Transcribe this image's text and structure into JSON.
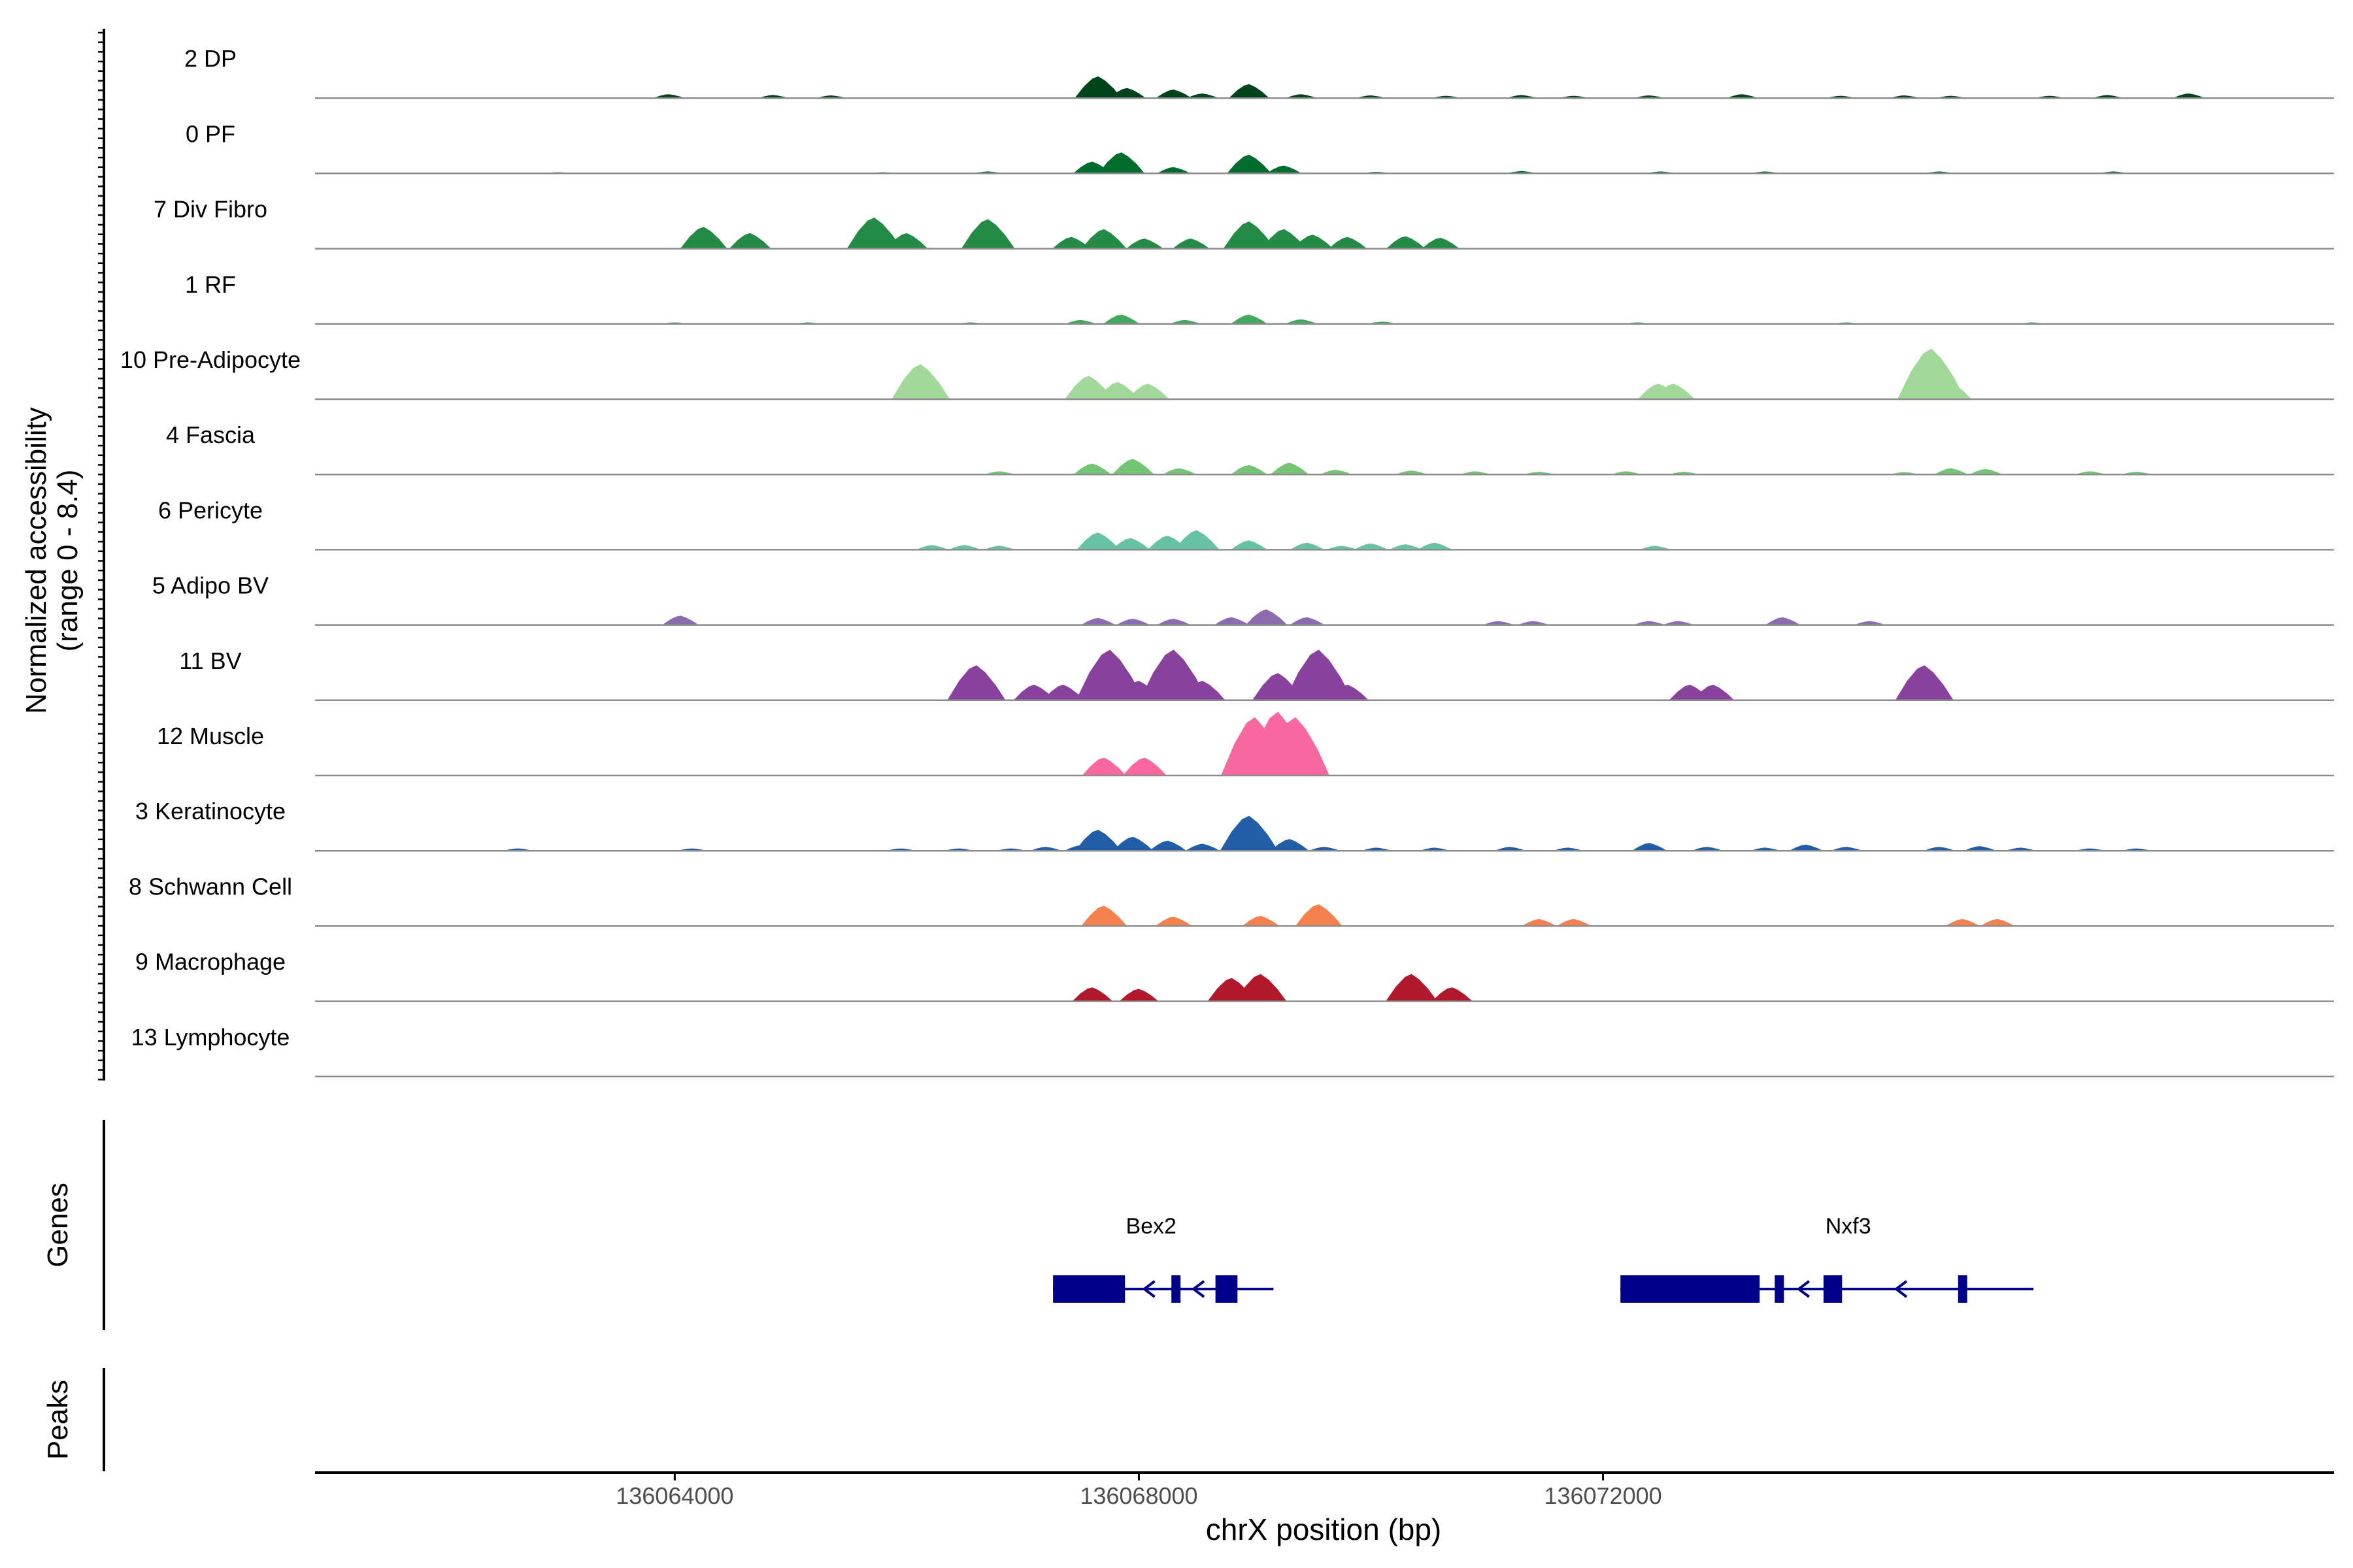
{
  "chart_data": {
    "type": "area",
    "title": "",
    "xlabel": "chrX position (bp)",
    "ylabel_line1": "Normalized accessibility",
    "ylabel_line2": "(range 0 - 8.4)",
    "y_range": [
      0,
      8.4
    ],
    "xlim": [
      136060900,
      136078300
    ],
    "x_ticks": [
      136064000,
      136068000,
      136072000
    ],
    "x_tick_labels": [
      "136064000",
      "136068000",
      "136072000"
    ],
    "panel_labels": {
      "genes": "Genes",
      "peaks": "Peaks"
    },
    "series": [
      {
        "name": "2 DP",
        "color": "#00441B",
        "peaks": [
          [
            136063950,
            0.5
          ],
          [
            136064850,
            0.4
          ],
          [
            136065350,
            0.35
          ],
          [
            136067650,
            2.8
          ],
          [
            136067900,
            1.3
          ],
          [
            136068300,
            1.1
          ],
          [
            136068550,
            0.6
          ],
          [
            136068950,
            1.8
          ],
          [
            136069400,
            0.5
          ],
          [
            136070000,
            0.35
          ],
          [
            136070650,
            0.3
          ],
          [
            136071300,
            0.4
          ],
          [
            136071750,
            0.3
          ],
          [
            136072400,
            0.35
          ],
          [
            136073200,
            0.5
          ],
          [
            136074050,
            0.3
          ],
          [
            136074600,
            0.35
          ],
          [
            136075000,
            0.3
          ],
          [
            136075850,
            0.3
          ],
          [
            136076350,
            0.4
          ],
          [
            136077050,
            0.6
          ]
        ]
      },
      {
        "name": "0 PF",
        "color": "#006D2C",
        "peaks": [
          [
            136063000,
            0.15
          ],
          [
            136065800,
            0.15
          ],
          [
            136066700,
            0.25
          ],
          [
            136067600,
            1.5
          ],
          [
            136067850,
            2.7
          ],
          [
            136068300,
            0.8
          ],
          [
            136068950,
            2.4
          ],
          [
            136069250,
            1.0
          ],
          [
            136070050,
            0.2
          ],
          [
            136071300,
            0.3
          ],
          [
            136072500,
            0.25
          ],
          [
            136073400,
            0.25
          ],
          [
            136074900,
            0.25
          ],
          [
            136076400,
            0.25
          ]
        ]
      },
      {
        "name": "7 Div Fibro",
        "color": "#238B45",
        "peaks": [
          [
            136064250,
            2.8
          ],
          [
            136064650,
            2.0
          ],
          [
            136065720,
            4.0
          ],
          [
            136066000,
            2.0
          ],
          [
            136066700,
            3.8
          ],
          [
            136067420,
            1.5
          ],
          [
            136067700,
            2.5
          ],
          [
            136068050,
            1.3
          ],
          [
            136068450,
            1.3
          ],
          [
            136068950,
            3.5
          ],
          [
            136069250,
            2.5
          ],
          [
            136069500,
            1.8
          ],
          [
            136069800,
            1.5
          ],
          [
            136070300,
            1.6
          ],
          [
            136070600,
            1.4
          ]
        ]
      },
      {
        "name": "1 RF",
        "color": "#41AB5D",
        "peaks": [
          [
            136064000,
            0.2
          ],
          [
            136065150,
            0.2
          ],
          [
            136066550,
            0.2
          ],
          [
            136067500,
            0.5
          ],
          [
            136067850,
            1.2
          ],
          [
            136068400,
            0.5
          ],
          [
            136068950,
            1.2
          ],
          [
            136069400,
            0.6
          ],
          [
            136070100,
            0.3
          ],
          [
            136072300,
            0.2
          ],
          [
            136074100,
            0.2
          ],
          [
            136075700,
            0.2
          ]
        ]
      },
      {
        "name": "10 Pre-Adipocyte",
        "color": "#A1D99B",
        "peaks": [
          [
            136066120,
            4.5
          ],
          [
            136067570,
            3.0
          ],
          [
            136067820,
            2.2
          ],
          [
            136068080,
            2.0
          ],
          [
            136072480,
            2.0
          ],
          [
            136072610,
            2.0
          ],
          [
            136074830,
            6.5
          ],
          [
            136074990,
            2.2
          ]
        ]
      },
      {
        "name": "4 Fascia",
        "color": "#74C476",
        "peaks": [
          [
            136066800,
            0.4
          ],
          [
            136067600,
            1.4
          ],
          [
            136067950,
            2.0
          ],
          [
            136068350,
            0.8
          ],
          [
            136068950,
            1.2
          ],
          [
            136069300,
            1.5
          ],
          [
            136069700,
            0.6
          ],
          [
            136070350,
            0.5
          ],
          [
            136070900,
            0.4
          ],
          [
            136071450,
            0.35
          ],
          [
            136072200,
            0.4
          ],
          [
            136072700,
            0.35
          ],
          [
            136074600,
            0.3
          ],
          [
            136075000,
            0.8
          ],
          [
            136075300,
            0.7
          ],
          [
            136076200,
            0.4
          ],
          [
            136076600,
            0.35
          ]
        ]
      },
      {
        "name": "6 Pericyte",
        "color": "#66C2A4",
        "peaks": [
          [
            136066220,
            0.6
          ],
          [
            136066500,
            0.6
          ],
          [
            136066800,
            0.5
          ],
          [
            136067650,
            2.2
          ],
          [
            136067930,
            1.5
          ],
          [
            136068250,
            1.8
          ],
          [
            136068500,
            2.5
          ],
          [
            136068950,
            1.2
          ],
          [
            136069450,
            0.9
          ],
          [
            136069750,
            0.5
          ],
          [
            136070000,
            0.8
          ],
          [
            136070300,
            0.7
          ],
          [
            136070550,
            0.9
          ],
          [
            136072450,
            0.5
          ]
        ]
      },
      {
        "name": "5 Adipo BV",
        "color": "#8C6BB1",
        "peaks": [
          [
            136064050,
            1.2
          ],
          [
            136067650,
            0.9
          ],
          [
            136067950,
            0.8
          ],
          [
            136068300,
            0.8
          ],
          [
            136068800,
            1.0
          ],
          [
            136069100,
            2.0
          ],
          [
            136069450,
            1.0
          ],
          [
            136071100,
            0.5
          ],
          [
            136071400,
            0.5
          ],
          [
            136072400,
            0.5
          ],
          [
            136072650,
            0.5
          ],
          [
            136073550,
            1.0
          ],
          [
            136074300,
            0.5
          ]
        ]
      },
      {
        "name": "11 BV",
        "color": "#88419D",
        "peaks": [
          [
            136066600,
            4.5
          ],
          [
            136067100,
            2.0
          ],
          [
            136067350,
            2.0
          ],
          [
            136067750,
            6.5
          ],
          [
            136068000,
            2.5
          ],
          [
            136068300,
            6.5
          ],
          [
            136068550,
            2.5
          ],
          [
            136069200,
            3.5
          ],
          [
            136069550,
            6.5
          ],
          [
            136069800,
            2.0
          ],
          [
            136072750,
            2.0
          ],
          [
            136072950,
            2.0
          ],
          [
            136074770,
            4.5
          ]
        ]
      },
      {
        "name": "12 Muscle",
        "color": "#F768A1",
        "peaks": [
          [
            136067700,
            2.3
          ],
          [
            136068050,
            2.3
          ],
          [
            136069000,
            7.5
          ],
          [
            136069200,
            8.2
          ],
          [
            136069350,
            7.5
          ]
        ]
      },
      {
        "name": "3 Keratinocyte",
        "color": "#225EA8",
        "peaks": [
          [
            136062650,
            0.3
          ],
          [
            136064150,
            0.3
          ],
          [
            136065950,
            0.3
          ],
          [
            136066450,
            0.3
          ],
          [
            136066900,
            0.3
          ],
          [
            136067200,
            0.5
          ],
          [
            136067500,
            0.7
          ],
          [
            136067650,
            2.7
          ],
          [
            136067950,
            1.8
          ],
          [
            136068250,
            1.3
          ],
          [
            136068550,
            0.9
          ],
          [
            136068950,
            4.5
          ],
          [
            136069300,
            1.5
          ],
          [
            136069600,
            0.5
          ],
          [
            136070050,
            0.4
          ],
          [
            136070550,
            0.4
          ],
          [
            136071200,
            0.5
          ],
          [
            136071700,
            0.4
          ],
          [
            136072400,
            1.0
          ],
          [
            136072900,
            0.5
          ],
          [
            136073400,
            0.4
          ],
          [
            136073750,
            0.8
          ],
          [
            136074100,
            0.5
          ],
          [
            136074900,
            0.5
          ],
          [
            136075250,
            0.6
          ],
          [
            136075600,
            0.4
          ],
          [
            136076200,
            0.3
          ],
          [
            136076600,
            0.3
          ]
        ]
      },
      {
        "name": "8 Schwann Cell",
        "color": "#F4804E",
        "peaks": [
          [
            136067700,
            2.6
          ],
          [
            136068300,
            1.2
          ],
          [
            136069050,
            1.3
          ],
          [
            136069550,
            2.8
          ],
          [
            136071450,
            0.9
          ],
          [
            136071750,
            0.9
          ],
          [
            136075100,
            0.9
          ],
          [
            136075400,
            0.9
          ]
        ]
      },
      {
        "name": "9 Macrophage",
        "color": "#B2182B",
        "peaks": [
          [
            136067600,
            1.8
          ],
          [
            136068000,
            1.6
          ],
          [
            136068800,
            3.0
          ],
          [
            136069050,
            3.5
          ],
          [
            136070350,
            3.5
          ],
          [
            136070700,
            1.8
          ]
        ]
      },
      {
        "name": "13 Lymphocyte",
        "color": "#BDBDBD",
        "peaks": []
      }
    ],
    "genes": [
      {
        "name": "Bex2",
        "color": "#00008B",
        "strand": "-",
        "start": 136067260,
        "end": 136068850,
        "exons": [
          [
            136067260,
            136067880
          ],
          [
            136068280,
            136068350
          ],
          [
            136068660,
            136068850
          ]
        ]
      },
      {
        "name": "Nxf3",
        "color": "#00008B",
        "strand": "-",
        "start": 136072150,
        "end": 136075400,
        "exons": [
          [
            136072150,
            136073350
          ],
          [
            136073480,
            136073540
          ],
          [
            136073900,
            136074060
          ],
          [
            136075060,
            136075130
          ]
        ]
      }
    ],
    "peaks_track": []
  }
}
